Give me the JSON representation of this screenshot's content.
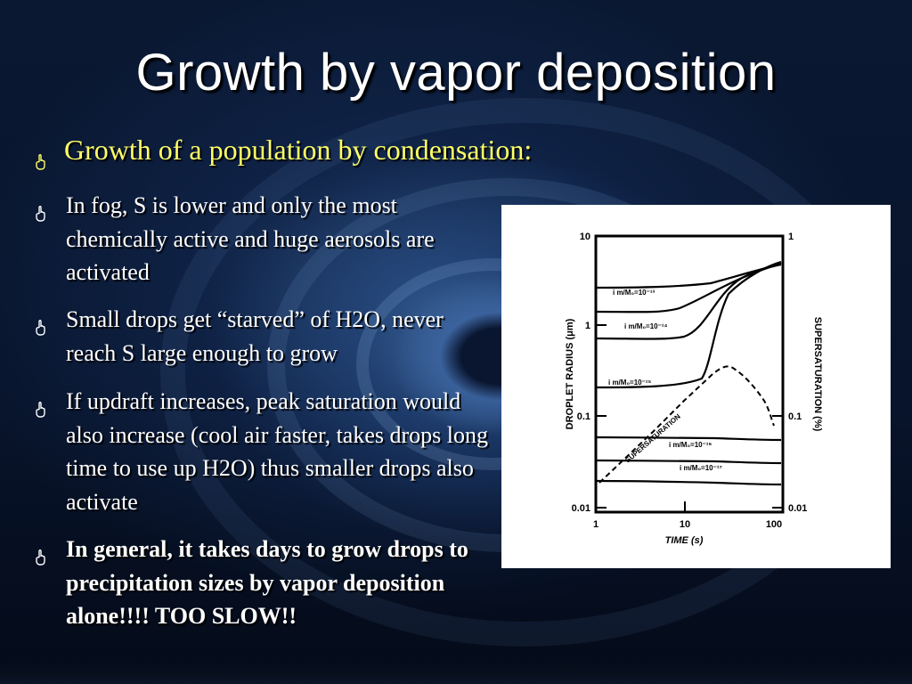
{
  "slide": {
    "title": "Growth by vapor deposition",
    "subheading": "Growth of a population by condensation:",
    "bullets": [
      "In fog, S is lower and only the most chemically active and huge aerosols are activated",
      "Small drops get “starved” of H2O, never reach S large enough to grow",
      "If updraft increases, peak saturation would also increase (cool air faster, takes drops long time to use up H2O) thus smaller drops also activate",
      "In general, it takes days to grow drops to precipitation sizes by vapor deposition alone!!!! TOO SLOW!!"
    ],
    "bullet_icon": "pointing-hand-icon",
    "colors": {
      "title": "#ffffff",
      "subheading": "#ffff66",
      "body": "#ffffff",
      "background": "#0a1832"
    }
  },
  "figure": {
    "y_axis_label": "DROPLET RADIUS (μm)",
    "x_axis_label": "TIME (s)",
    "right_axis_label": "SUPERSATURATION (%)",
    "left_ticks": [
      "10",
      "1",
      "0.1",
      "0.01"
    ],
    "right_ticks": [
      "1",
      "0.1",
      "0.01"
    ],
    "x_ticks": [
      "1",
      "10",
      "100"
    ],
    "curve_labels": [
      "i m/M₀=10⁻¹³",
      "i m/M₀=10⁻¹⁴",
      "i m/M₀=10⁻¹⁵",
      "i m/M₀=10⁻¹⁶",
      "i m/M₀=10⁻¹⁷"
    ],
    "supersaturation_label": "SUPERSATURATION"
  }
}
